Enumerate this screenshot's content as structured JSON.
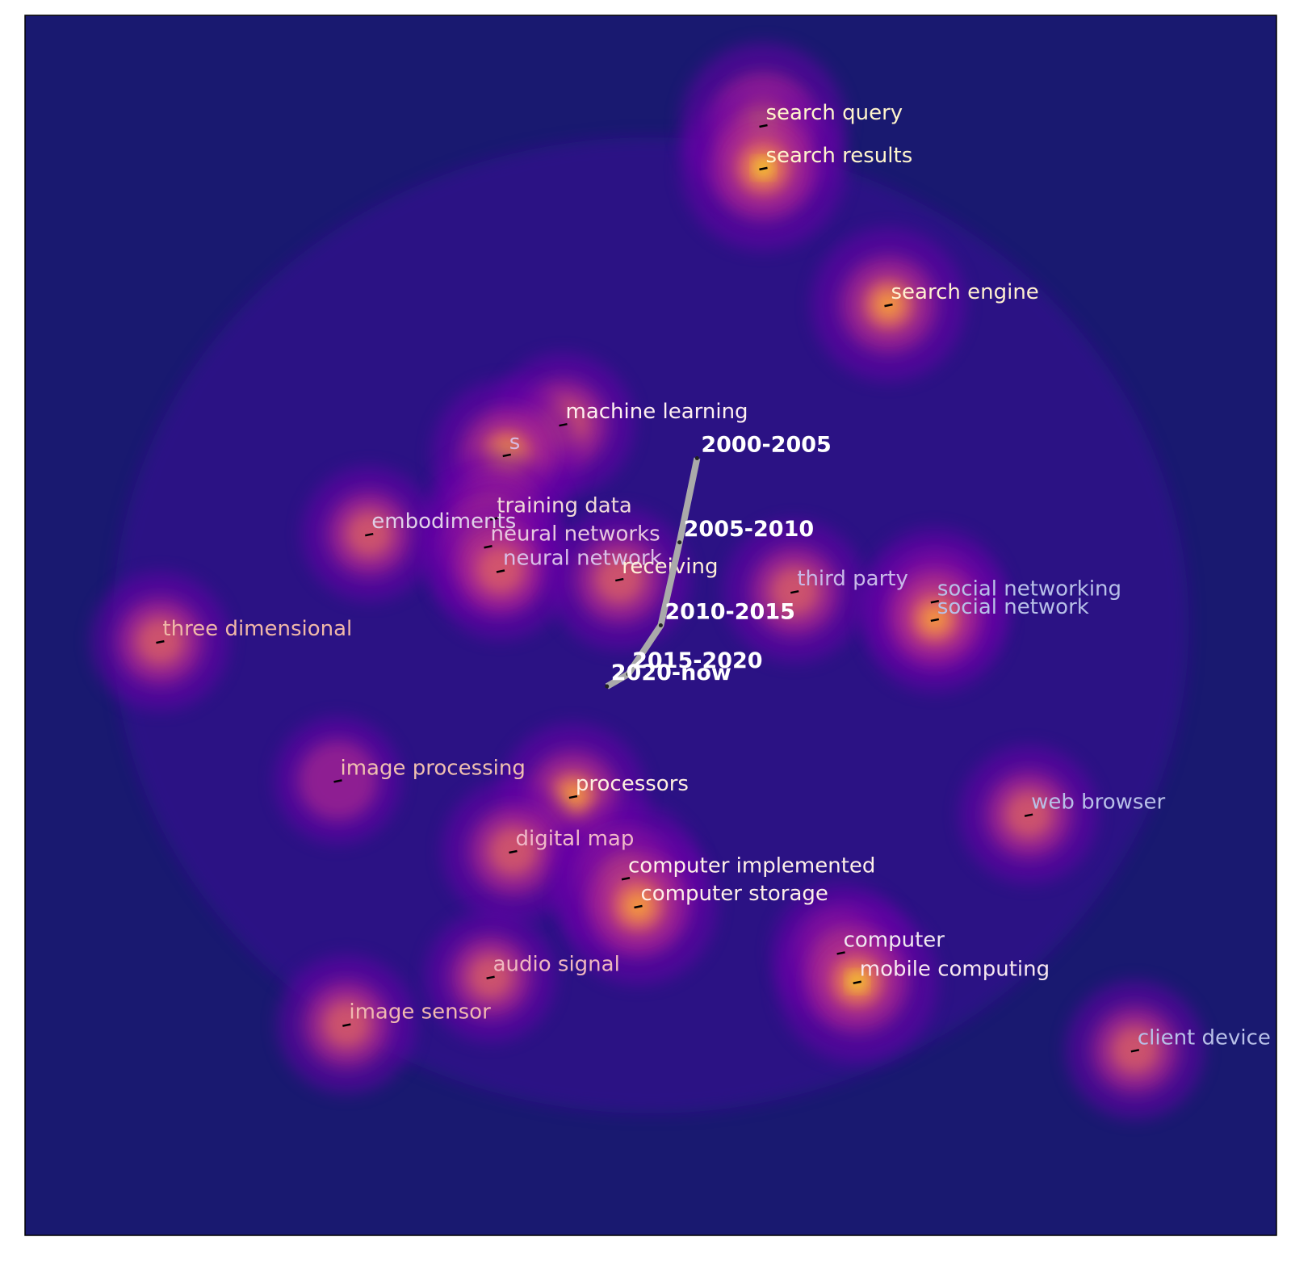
{
  "chart_data": {
    "type": "heatmap",
    "title": "",
    "xlabel": "",
    "ylabel": "",
    "axis_ticks": "none",
    "grid": false,
    "legend": "none",
    "colormap": "plasma",
    "background_color": "#191970",
    "peak_color": "#f0f921",
    "trajectory_color": "#aaaaaa",
    "keywords": [
      {
        "text": "search query",
        "x": 0.59,
        "y": 0.91,
        "density": 0.95,
        "color": "#fff5cc"
      },
      {
        "text": "search results",
        "x": 0.59,
        "y": 0.875,
        "density": 0.95,
        "color": "#fff5cc"
      },
      {
        "text": "search engine",
        "x": 0.69,
        "y": 0.763,
        "density": 0.8,
        "color": "#fff0d0"
      },
      {
        "text": "machine learning",
        "x": 0.43,
        "y": 0.665,
        "density": 0.65,
        "color": "#fff0f0"
      },
      {
        "text": "s",
        "x": 0.385,
        "y": 0.64,
        "density": 0.75,
        "color": "#d8b8e0"
      },
      {
        "text": "training data",
        "x": 0.375,
        "y": 0.588,
        "density": 0.6,
        "color": "#f0d8d8"
      },
      {
        "text": "embodiments",
        "x": 0.275,
        "y": 0.575,
        "density": 0.55,
        "color": "#e0d0e8"
      },
      {
        "text": "neural networks",
        "x": 0.37,
        "y": 0.565,
        "density": 0.6,
        "color": "#e8c8e0"
      },
      {
        "text": "neural network",
        "x": 0.38,
        "y": 0.545,
        "density": 0.6,
        "color": "#d8c0e8"
      },
      {
        "text": "receiving",
        "x": 0.475,
        "y": 0.538,
        "density": 0.65,
        "color": "#fff0d8"
      },
      {
        "text": "third party",
        "x": 0.615,
        "y": 0.528,
        "density": 0.65,
        "color": "#c8b8e8"
      },
      {
        "text": "social networking",
        "x": 0.727,
        "y": 0.52,
        "density": 0.7,
        "color": "#b8c0e8"
      },
      {
        "text": "social network",
        "x": 0.727,
        "y": 0.505,
        "density": 0.7,
        "color": "#b8c0e8"
      },
      {
        "text": "three dimensional",
        "x": 0.108,
        "y": 0.487,
        "density": 0.6,
        "color": "#f0b8a8"
      },
      {
        "text": "image processing",
        "x": 0.25,
        "y": 0.373,
        "density": 0.45,
        "color": "#f0c0b0"
      },
      {
        "text": "processors",
        "x": 0.438,
        "y": 0.36,
        "density": 0.7,
        "color": "#fff0e0"
      },
      {
        "text": "web browser",
        "x": 0.802,
        "y": 0.345,
        "density": 0.6,
        "color": "#b8c0e8"
      },
      {
        "text": "digital map",
        "x": 0.39,
        "y": 0.315,
        "density": 0.65,
        "color": "#f0b8c8"
      },
      {
        "text": "computer implemented",
        "x": 0.48,
        "y": 0.293,
        "density": 0.8,
        "color": "#fff0e8"
      },
      {
        "text": "computer storage",
        "x": 0.49,
        "y": 0.27,
        "density": 0.85,
        "color": "#fff0e8"
      },
      {
        "text": "computer",
        "x": 0.652,
        "y": 0.232,
        "density": 0.6,
        "color": "#f0e8f0"
      },
      {
        "text": "mobile computing",
        "x": 0.665,
        "y": 0.208,
        "density": 0.9,
        "color": "#f8e8f0"
      },
      {
        "text": "audio signal",
        "x": 0.372,
        "y": 0.212,
        "density": 0.5,
        "color": "#f0b8c0"
      },
      {
        "text": "image sensor",
        "x": 0.257,
        "y": 0.173,
        "density": 0.6,
        "color": "#f0b8b0"
      },
      {
        "text": "client device",
        "x": 0.887,
        "y": 0.152,
        "density": 0.6,
        "color": "#b8c0e8"
      }
    ],
    "trajectory": {
      "points": [
        {
          "label": "2000-2005",
          "x": 0.537,
          "y": 0.637
        },
        {
          "label": "2005-2010",
          "x": 0.523,
          "y": 0.568
        },
        {
          "label": "2010-2015",
          "x": 0.508,
          "y": 0.5
        },
        {
          "label": "2015-2020",
          "x": 0.482,
          "y": 0.46
        },
        {
          "label": "2020-now",
          "x": 0.465,
          "y": 0.45
        }
      ]
    }
  }
}
